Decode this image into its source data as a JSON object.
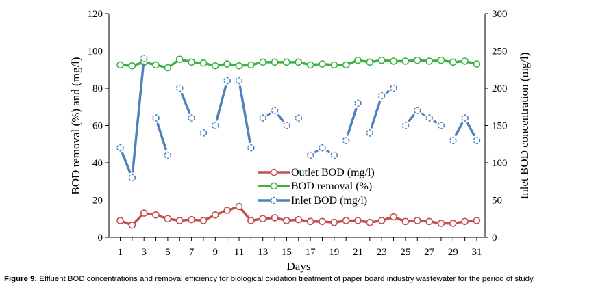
{
  "chart_data": {
    "type": "line",
    "x": [
      1,
      2,
      3,
      4,
      5,
      6,
      7,
      8,
      9,
      10,
      11,
      12,
      13,
      14,
      15,
      16,
      17,
      18,
      19,
      20,
      21,
      22,
      23,
      24,
      25,
      26,
      27,
      28,
      29,
      30,
      31
    ],
    "x_ticks": [
      "1",
      "3",
      "5",
      "7",
      "9",
      "11",
      "13",
      "15",
      "17",
      "19",
      "21",
      "23",
      "25",
      "27",
      "29",
      "31"
    ],
    "xlabel": "Days",
    "ylabel_left": "BOD removal (%) and (mg/l)",
    "ylabel_right": "Inlet BOD concentration (mg/l)",
    "ylim_left": [
      0,
      120
    ],
    "ylim_right": [
      0,
      300
    ],
    "y_ticks_left": [
      "0",
      "20",
      "40",
      "60",
      "80",
      "100",
      "120"
    ],
    "y_ticks_right": [
      "0",
      "50",
      "100",
      "150",
      "200",
      "250",
      "300"
    ],
    "grid": false,
    "legend_position": "center",
    "series": [
      {
        "name": "Outlet BOD (mg/l)",
        "axis": "left",
        "color": "#c0504d",
        "values": [
          9,
          6.5,
          13,
          12,
          10,
          9,
          9.5,
          9,
          12,
          14.5,
          16.5,
          9,
          10,
          10.5,
          9,
          9.5,
          8.5,
          8.5,
          8,
          9,
          9,
          8,
          9,
          11,
          8.5,
          9,
          8.5,
          7.5,
          7.5,
          8.5,
          9
        ]
      },
      {
        "name": "BOD removal (%)",
        "axis": "left",
        "color": "#3cb043",
        "values": [
          92.5,
          92,
          94,
          92.5,
          91,
          95.5,
          94,
          93.5,
          92,
          93,
          92,
          92.5,
          94,
          94,
          94,
          94,
          92.5,
          93,
          92.5,
          92.5,
          95,
          94,
          95,
          94.5,
          94.5,
          95,
          94.5,
          95,
          94,
          94.5,
          93
        ]
      },
      {
        "name": "Inlet BOD (mg/l)",
        "axis": "right",
        "color": "#4f81bd",
        "values": [
          120,
          80,
          240,
          160,
          110,
          200,
          160,
          140,
          150,
          210,
          210,
          120,
          160,
          170,
          150,
          160,
          110,
          120,
          110,
          130,
          180,
          140,
          190,
          200,
          150,
          170,
          160,
          150,
          130,
          160,
          130
        ],
        "segments": [
          [
            1,
            2
          ],
          [
            2,
            3
          ],
          [
            4,
            5
          ],
          [
            6,
            7
          ],
          [
            9,
            10
          ],
          [
            11,
            12
          ],
          [
            13,
            14
          ],
          [
            14,
            15
          ],
          [
            17,
            18
          ],
          [
            18,
            19
          ],
          [
            20,
            21
          ],
          [
            22,
            23
          ],
          [
            23,
            24
          ],
          [
            25,
            26
          ],
          [
            26,
            27
          ],
          [
            27,
            28
          ],
          [
            29,
            30
          ],
          [
            30,
            31
          ]
        ]
      }
    ]
  },
  "caption": {
    "label": "Figure 9:",
    "text": " Effluent BOD concentrations and removal efficiency for biological oxidation treatment of paper board industry wastewater for the period of study."
  }
}
